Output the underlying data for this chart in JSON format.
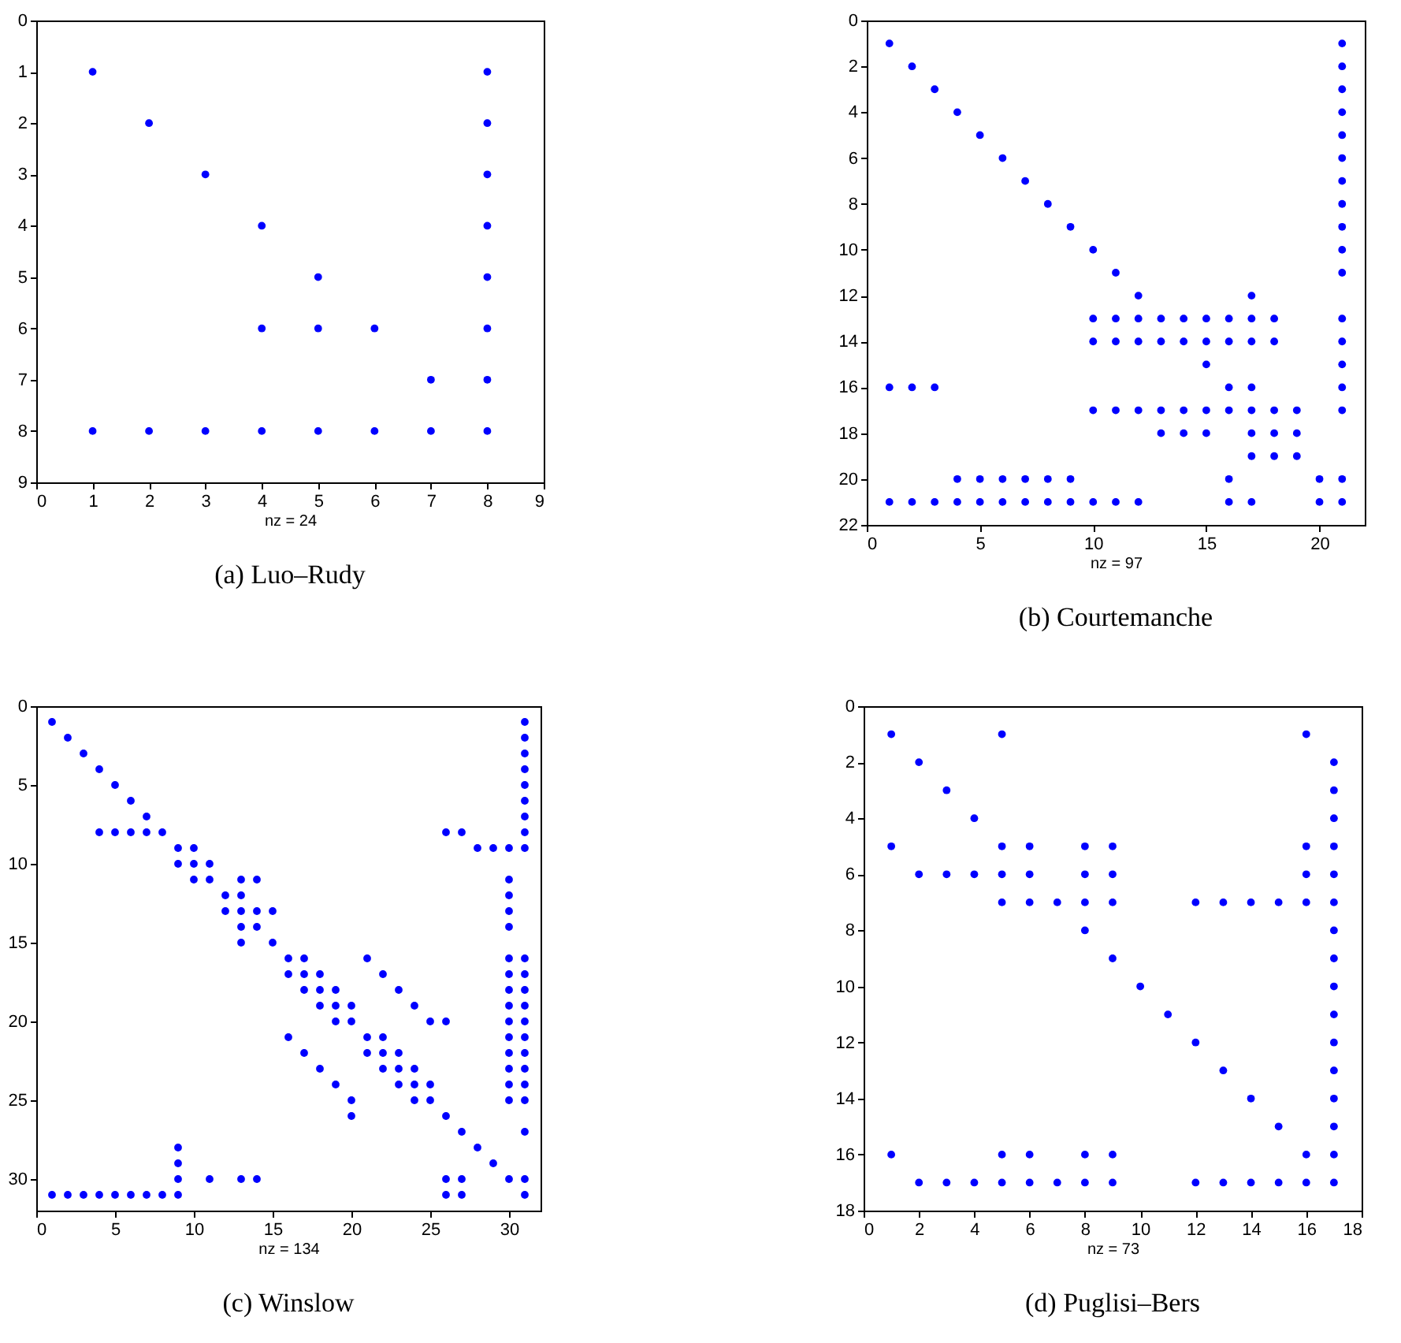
{
  "chart_data": [
    {
      "type": "scatter",
      "title": "(a) Luo–Rudy",
      "xlabel": "nz = 24",
      "marker": "circle",
      "xlim": [
        0,
        9
      ],
      "ylim": [
        9,
        0
      ],
      "xticks": [
        0,
        1,
        2,
        3,
        4,
        5,
        6,
        7,
        8,
        9
      ],
      "yticks": [
        0,
        1,
        2,
        3,
        4,
        5,
        6,
        7,
        8,
        9
      ],
      "series": [
        {
          "color": "#0000ff",
          "x": [
            1,
            8,
            2,
            8,
            3,
            8,
            4,
            8,
            5,
            8,
            4,
            5,
            6,
            8,
            7,
            8,
            1,
            2,
            3,
            4,
            5,
            6,
            7,
            8
          ],
          "values": [
            1,
            1,
            2,
            2,
            3,
            3,
            4,
            4,
            5,
            5,
            6,
            6,
            6,
            6,
            7,
            7,
            8,
            8,
            8,
            8,
            8,
            8,
            8,
            8
          ]
        }
      ]
    },
    {
      "type": "scatter",
      "title": "(b) Courtemanche",
      "xlabel": "nz = 97",
      "marker": "circle",
      "xlim": [
        0,
        22
      ],
      "ylim": [
        22,
        0
      ],
      "xticks": [
        0,
        5,
        10,
        15,
        20
      ],
      "yticks": [
        0,
        2,
        4,
        6,
        8,
        10,
        12,
        14,
        16,
        18,
        20,
        22
      ],
      "series": [
        {
          "color": "#0000ff",
          "x": [
            1,
            21,
            2,
            21,
            3,
            21,
            4,
            21,
            5,
            21,
            6,
            21,
            7,
            21,
            8,
            21,
            9,
            21,
            10,
            21,
            11,
            21,
            12,
            17,
            10,
            11,
            12,
            13,
            14,
            15,
            16,
            17,
            18,
            21,
            10,
            11,
            12,
            13,
            14,
            15,
            16,
            17,
            18,
            21,
            15,
            21,
            1,
            2,
            3,
            16,
            17,
            21,
            10,
            11,
            12,
            13,
            14,
            15,
            16,
            17,
            18,
            19,
            21,
            13,
            14,
            15,
            17,
            18,
            19,
            17,
            18,
            19,
            4,
            5,
            6,
            7,
            8,
            9,
            16,
            20,
            21,
            1,
            2,
            3,
            4,
            5,
            6,
            7,
            8,
            9,
            10,
            11,
            12,
            16,
            17,
            20,
            21
          ],
          "values": [
            1,
            1,
            2,
            2,
            3,
            3,
            4,
            4,
            5,
            5,
            6,
            6,
            7,
            7,
            8,
            8,
            9,
            9,
            10,
            10,
            11,
            11,
            12,
            12,
            13,
            13,
            13,
            13,
            13,
            13,
            13,
            13,
            13,
            13,
            14,
            14,
            14,
            14,
            14,
            14,
            14,
            14,
            14,
            14,
            15,
            15,
            16,
            16,
            16,
            16,
            16,
            16,
            17,
            17,
            17,
            17,
            17,
            17,
            17,
            17,
            17,
            17,
            17,
            18,
            18,
            18,
            18,
            18,
            18,
            19,
            19,
            19,
            20,
            20,
            20,
            20,
            20,
            20,
            20,
            20,
            20,
            21,
            21,
            21,
            21,
            21,
            21,
            21,
            21,
            21,
            21,
            21,
            21,
            21,
            21,
            21,
            21
          ]
        }
      ]
    },
    {
      "type": "scatter",
      "title": "(c) Winslow",
      "xlabel": "nz = 134",
      "marker": "circle",
      "xlim": [
        0,
        32
      ],
      "ylim": [
        32,
        0
      ],
      "xticks": [
        0,
        5,
        10,
        15,
        20,
        25,
        30
      ],
      "yticks": [
        0,
        5,
        10,
        15,
        20,
        25,
        30
      ],
      "series": [
        {
          "color": "#0000ff",
          "x": [
            1,
            31,
            2,
            31,
            3,
            31,
            4,
            31,
            5,
            31,
            6,
            31,
            7,
            31,
            4,
            5,
            6,
            7,
            8,
            26,
            27,
            31,
            9,
            10,
            28,
            29,
            30,
            31,
            9,
            10,
            11,
            10,
            11,
            13,
            14,
            30,
            12,
            13,
            30,
            12,
            13,
            14,
            15,
            30,
            13,
            14,
            30,
            13,
            15,
            16,
            17,
            21,
            30,
            31,
            16,
            17,
            18,
            22,
            30,
            31,
            17,
            18,
            19,
            23,
            30,
            31,
            18,
            19,
            20,
            24,
            30,
            31,
            19,
            20,
            25,
            26,
            30,
            31,
            16,
            21,
            22,
            30,
            31,
            17,
            21,
            22,
            23,
            30,
            31,
            18,
            22,
            23,
            24,
            30,
            31,
            19,
            23,
            24,
            25,
            30,
            31,
            20,
            24,
            25,
            30,
            31,
            20,
            26,
            27,
            31,
            9,
            28,
            9,
            29,
            9,
            11,
            13,
            14,
            26,
            27,
            30,
            31,
            1,
            2,
            3,
            4,
            5,
            6,
            7,
            8,
            9,
            26,
            27,
            31
          ],
          "values": [
            1,
            1,
            2,
            2,
            3,
            3,
            4,
            4,
            5,
            5,
            6,
            6,
            7,
            7,
            8,
            8,
            8,
            8,
            8,
            8,
            8,
            8,
            9,
            9,
            9,
            9,
            9,
            9,
            10,
            10,
            10,
            11,
            11,
            11,
            11,
            11,
            12,
            12,
            12,
            13,
            13,
            13,
            13,
            13,
            14,
            14,
            14,
            15,
            15,
            16,
            16,
            16,
            16,
            16,
            17,
            17,
            17,
            17,
            17,
            17,
            18,
            18,
            18,
            18,
            18,
            18,
            19,
            19,
            19,
            19,
            19,
            19,
            20,
            20,
            20,
            20,
            20,
            20,
            21,
            21,
            21,
            21,
            21,
            22,
            22,
            22,
            22,
            22,
            22,
            23,
            23,
            23,
            23,
            23,
            23,
            24,
            24,
            24,
            24,
            24,
            24,
            25,
            25,
            25,
            25,
            25,
            26,
            26,
            27,
            27,
            28,
            28,
            29,
            29,
            30,
            30,
            30,
            30,
            30,
            30,
            30,
            30,
            31,
            31,
            31,
            31,
            31,
            31,
            31,
            31,
            31,
            31,
            31,
            31
          ]
        }
      ]
    },
    {
      "type": "scatter",
      "title": "(d) Puglisi–Bers",
      "xlabel": "nz = 73",
      "marker": "circle",
      "xlim": [
        0,
        18
      ],
      "ylim": [
        18,
        0
      ],
      "xticks": [
        0,
        2,
        4,
        6,
        8,
        10,
        12,
        14,
        16,
        18
      ],
      "yticks": [
        0,
        2,
        4,
        6,
        8,
        10,
        12,
        14,
        16,
        18
      ],
      "series": [
        {
          "color": "#0000ff",
          "x": [
            1,
            5,
            16,
            2,
            17,
            3,
            17,
            4,
            17,
            1,
            5,
            6,
            8,
            9,
            16,
            17,
            2,
            3,
            4,
            5,
            6,
            8,
            9,
            16,
            17,
            5,
            6,
            7,
            8,
            9,
            12,
            13,
            14,
            15,
            16,
            17,
            8,
            17,
            9,
            17,
            10,
            17,
            11,
            17,
            12,
            17,
            13,
            17,
            14,
            17,
            15,
            17,
            1,
            5,
            6,
            8,
            9,
            16,
            17,
            2,
            3,
            4,
            5,
            6,
            7,
            8,
            9,
            12,
            13,
            14,
            15,
            16,
            17
          ],
          "values": [
            1,
            1,
            1,
            2,
            2,
            3,
            3,
            4,
            4,
            5,
            5,
            5,
            5,
            5,
            5,
            5,
            6,
            6,
            6,
            6,
            6,
            6,
            6,
            6,
            6,
            7,
            7,
            7,
            7,
            7,
            7,
            7,
            7,
            7,
            7,
            7,
            8,
            8,
            9,
            9,
            10,
            10,
            11,
            11,
            12,
            12,
            13,
            13,
            14,
            14,
            15,
            15,
            16,
            16,
            16,
            16,
            16,
            16,
            16,
            17,
            17,
            17,
            17,
            17,
            17,
            17,
            17,
            17,
            17,
            17,
            17,
            17,
            17
          ]
        }
      ]
    }
  ]
}
